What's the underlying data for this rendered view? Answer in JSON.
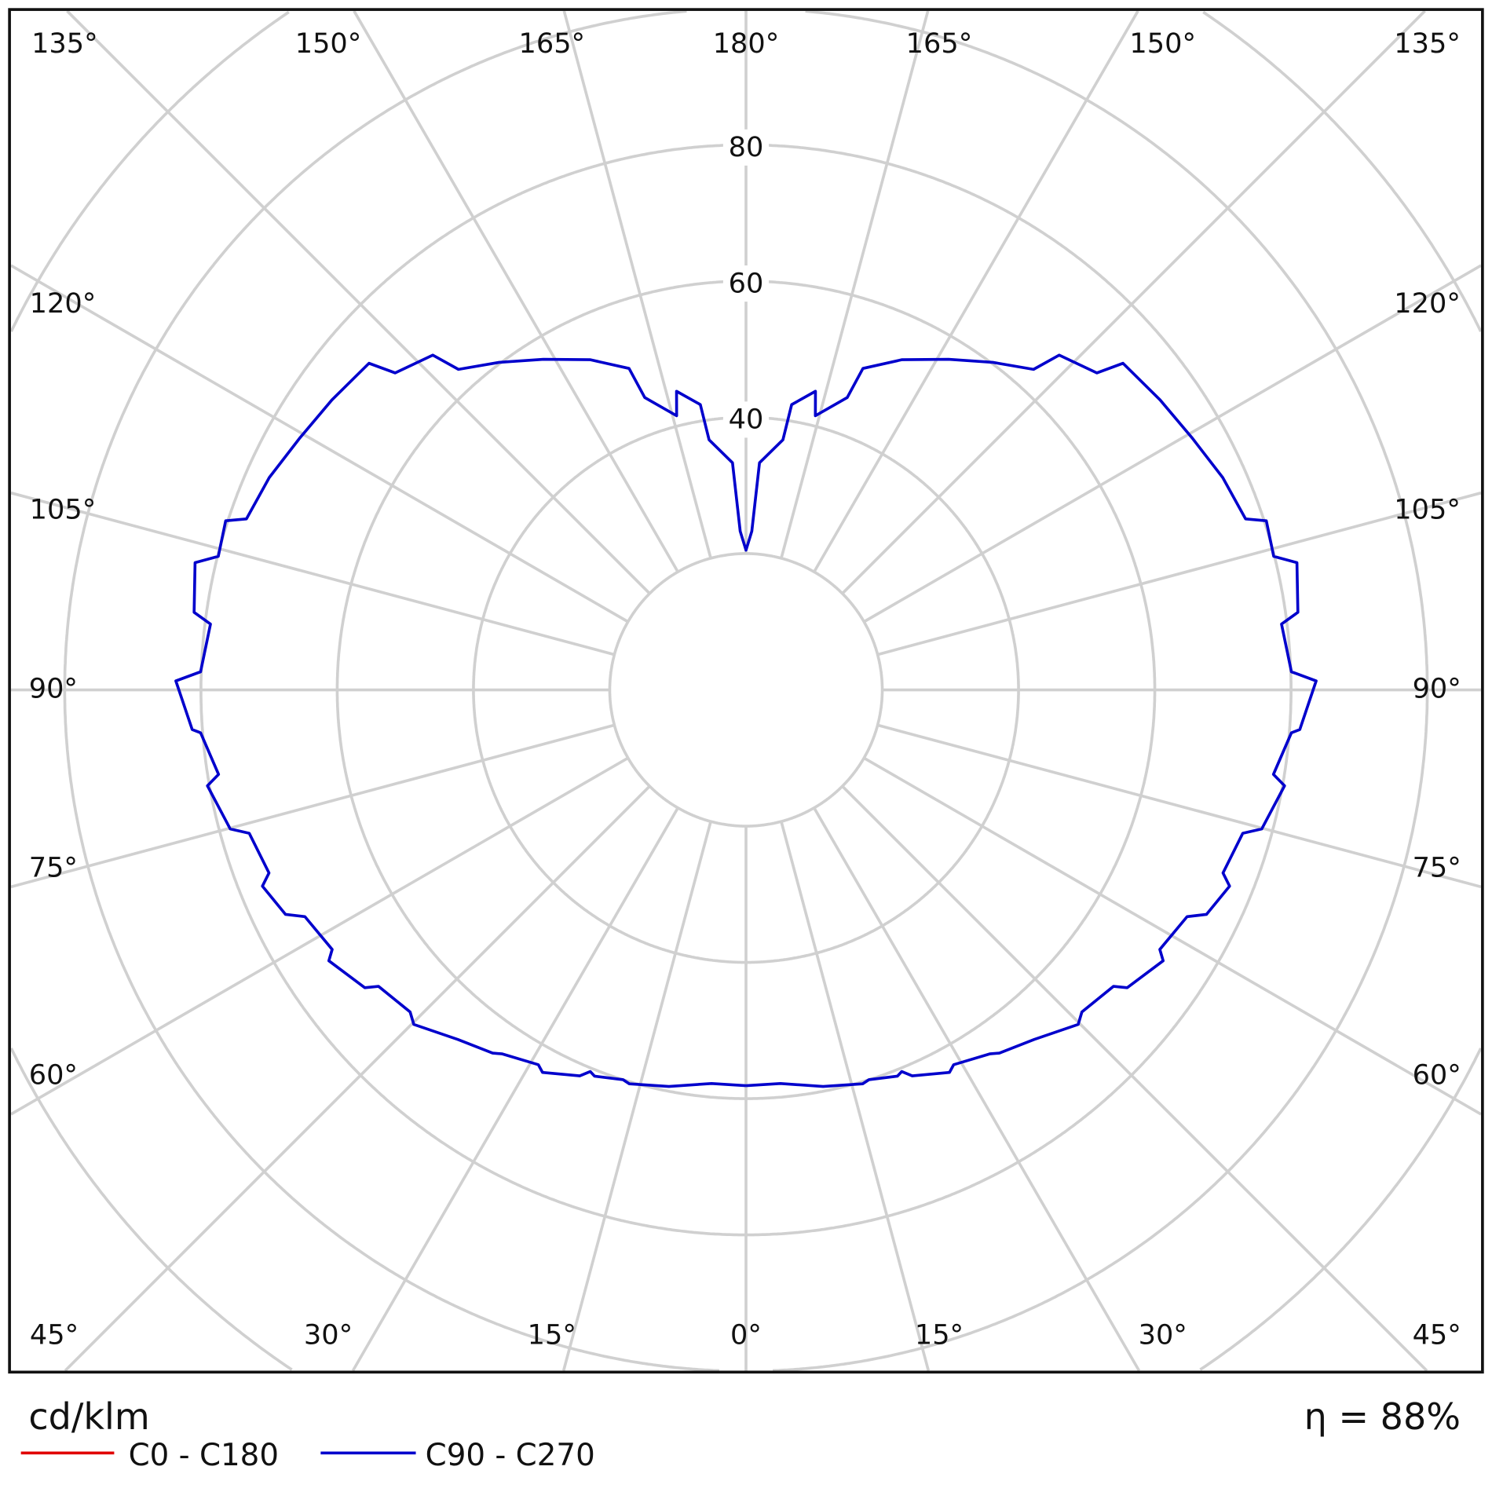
{
  "chart_data": {
    "type": "polar",
    "unit_label": "cd/klm",
    "efficiency_label": "η = 88%",
    "radial_ticks": [
      20,
      40,
      60,
      80,
      100,
      120
    ],
    "radial_tick_labels": [
      "40",
      "60",
      "80"
    ],
    "angle_tick_labels_top": [
      "135°",
      "150°",
      "165°",
      "180°",
      "165°",
      "150°",
      "135°"
    ],
    "angle_tick_labels_left": [
      "120°",
      "105°",
      "90°",
      "75°",
      "60°"
    ],
    "angle_tick_labels_right": [
      "120°",
      "105°",
      "90°",
      "75°",
      "60°"
    ],
    "angle_tick_labels_bottom": [
      "45°",
      "30°",
      "15°",
      "0°",
      "15°",
      "30°",
      "45°"
    ],
    "grid": true,
    "legend_position": "bottom-left",
    "series": [
      {
        "name": "C0 - C180",
        "color": "#e00000",
        "points": []
      },
      {
        "name": "C90 - C270",
        "color": "#0000cc",
        "symmetric": true,
        "points": [
          [
            0,
            58.1
          ],
          [
            5.0,
            58.0
          ],
          [
            11.0,
            59.3
          ],
          [
            16.5,
            60.3
          ],
          [
            17.5,
            60.0
          ],
          [
            21.4,
            60.9
          ],
          [
            22.2,
            60.5
          ],
          [
            23.3,
            61.7
          ],
          [
            28.0,
            63.6
          ],
          [
            29.0,
            62.9
          ],
          [
            33.8,
            64.3
          ],
          [
            34.9,
            65.0
          ],
          [
            39.5,
            66.5
          ],
          [
            44.8,
            69.2
          ],
          [
            46.2,
            68.3
          ],
          [
            51.1,
            69.3
          ],
          [
            52.0,
            71.0
          ],
          [
            57.0,
            73.0
          ],
          [
            57.9,
            71.7
          ],
          [
            62.8,
            72.8
          ],
          [
            64.0,
            75.2
          ],
          [
            67.9,
            76.6
          ],
          [
            69.0,
            75.0
          ],
          [
            73.9,
            75.9
          ],
          [
            74.9,
            78.4
          ],
          [
            79.9,
            80.3
          ],
          [
            80.9,
            78.4
          ],
          [
            85.5,
            80.3
          ],
          [
            85.9,
            81.5
          ],
          [
            90.9,
            83.7
          ],
          [
            91.9,
            80.1
          ],
          [
            97.0,
            79.2
          ],
          [
            98.0,
            81.8
          ],
          [
            103.0,
            83.0
          ],
          [
            104.2,
            79.9
          ],
          [
            108.0,
            80.3
          ],
          [
            108.9,
            77.5
          ],
          [
            114.0,
            76.6
          ],
          [
            119.5,
            75.2
          ],
          [
            125.0,
            74.2
          ],
          [
            130.9,
            73.2
          ],
          [
            132.1,
            69.4
          ],
          [
            136.9,
            67.3
          ],
          [
            138.1,
            63.2
          ],
          [
            143.0,
            60.2
          ],
          [
            148.5,
            56.9
          ],
          [
            154.7,
            53.6
          ],
          [
            160.0,
            50.2
          ],
          [
            160.9,
            45.4
          ],
          [
            165.8,
            41.5
          ],
          [
            166.9,
            45.0
          ],
          [
            170.9,
            42.4
          ],
          [
            171.6,
            37.1
          ],
          [
            176.6,
            33.4
          ],
          [
            177.9,
            23.3
          ],
          [
            180,
            20.5
          ]
        ]
      }
    ]
  }
}
